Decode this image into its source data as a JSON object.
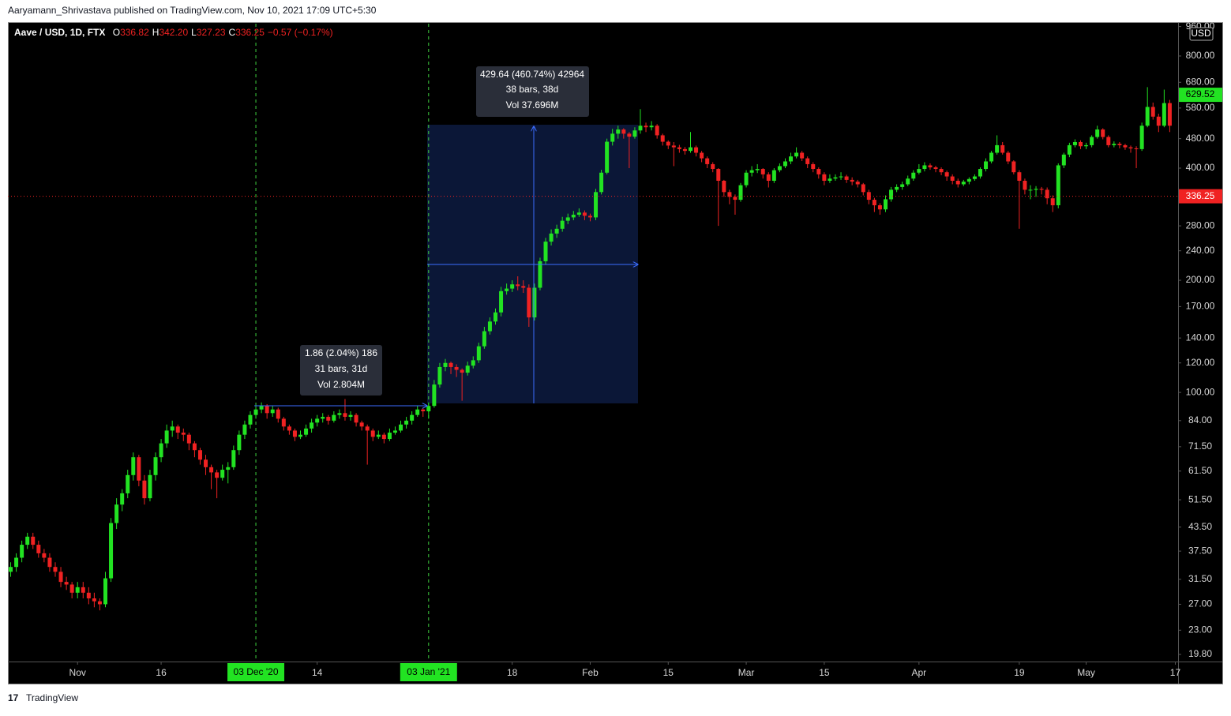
{
  "header": {
    "publisher": "Aaryamann_Shrivastava published on TradingView.com, Nov 10, 2021 17:09 UTC+5:30",
    "footer": "TradingView"
  },
  "chart_data": {
    "type": "candlestick",
    "title": "Aave / USD, 1D, FTX",
    "quote": [
      [
        "O",
        "336.82"
      ],
      [
        "H",
        "342.20"
      ],
      [
        "L",
        "327.23"
      ],
      [
        "C",
        "336.25"
      ]
    ],
    "change": "−0.57 (−0.17%)",
    "unit": "USD",
    "up_color": "#22e322",
    "down_color": "#f02222",
    "log_scale": true,
    "last_price": 336.25,
    "marked_price": 629.52,
    "ylim": [
      18.95,
      977
    ],
    "xlim": [
      -0.5,
      209.5
    ],
    "yticks": [
      {
        "value": 19.8,
        "label": "19.80"
      },
      {
        "value": 23,
        "label": "23.00"
      },
      {
        "value": 27,
        "label": "27.00"
      },
      {
        "value": 31.5,
        "label": "31.50"
      },
      {
        "value": 37.5,
        "label": "37.50"
      },
      {
        "value": 43.5,
        "label": "43.50"
      },
      {
        "value": 51.5,
        "label": "51.50"
      },
      {
        "value": 61.5,
        "label": "61.50"
      },
      {
        "value": 71.5,
        "label": "71.50"
      },
      {
        "value": 84,
        "label": "84.00"
      },
      {
        "value": 100,
        "label": "100.00"
      },
      {
        "value": 120,
        "label": "120.00"
      },
      {
        "value": 140,
        "label": "140.00"
      },
      {
        "value": 170,
        "label": "170.00"
      },
      {
        "value": 200,
        "label": "200.00"
      },
      {
        "value": 240,
        "label": "240.00"
      },
      {
        "value": 280,
        "label": "280.00"
      },
      {
        "value": 400,
        "label": "400.00"
      },
      {
        "value": 480,
        "label": "480.00"
      },
      {
        "value": 580,
        "label": "580.00"
      },
      {
        "value": 680,
        "label": "680.00"
      },
      {
        "value": 800,
        "label": "800.00"
      },
      {
        "value": 960,
        "label": "960.00"
      }
    ],
    "xticks": [
      {
        "value": 12,
        "label": "Nov"
      },
      {
        "value": 27,
        "label": "16"
      },
      {
        "value": 55,
        "label": "14"
      },
      {
        "value": 90,
        "label": "18"
      },
      {
        "value": 104,
        "label": "Feb"
      },
      {
        "value": 118,
        "label": "15"
      },
      {
        "value": 132,
        "label": "Mar"
      },
      {
        "value": 146,
        "label": "15"
      },
      {
        "value": 163,
        "label": "Apr"
      },
      {
        "value": 181,
        "label": "19"
      },
      {
        "value": 193,
        "label": "May"
      },
      {
        "value": 209,
        "label": "17"
      }
    ],
    "x_markers": [
      {
        "value": 44,
        "label": "03 Dec '20"
      },
      {
        "value": 75,
        "label": "03 Jan '21"
      }
    ],
    "measurements": [
      [
        "1.86 (2.04%) 186",
        "31 bars, 31d",
        "Vol 2.804M"
      ],
      [
        "429.64 (460.74%) 42964",
        "38 bars, 38d",
        "Vol 37.696M"
      ]
    ],
    "ohlc": [
      [
        33,
        35,
        32,
        34
      ],
      [
        34,
        37,
        33,
        36
      ],
      [
        36,
        40,
        35,
        39
      ],
      [
        39,
        42,
        38,
        41
      ],
      [
        41,
        42,
        38,
        39
      ],
      [
        39,
        40,
        36,
        37
      ],
      [
        37,
        38,
        35,
        36
      ],
      [
        36,
        37,
        33,
        34
      ],
      [
        34,
        35,
        32,
        33
      ],
      [
        33,
        34,
        30,
        31
      ],
      [
        31,
        32,
        29.5,
        30.5
      ],
      [
        30.5,
        31,
        28,
        29
      ],
      [
        29,
        31,
        28,
        30
      ],
      [
        30,
        31,
        28,
        29
      ],
      [
        29,
        30,
        27,
        28
      ],
      [
        28,
        29,
        26.5,
        27.5
      ],
      [
        27.5,
        28,
        26,
        27
      ],
      [
        27,
        33,
        26.5,
        31.7
      ],
      [
        31.7,
        46,
        31,
        44.6
      ],
      [
        44.6,
        52,
        43,
        50
      ],
      [
        50,
        55,
        48,
        53.6
      ],
      [
        53.6,
        62,
        52,
        60
      ],
      [
        60,
        69,
        58,
        67
      ],
      [
        67,
        68,
        56,
        58
      ],
      [
        58,
        60,
        50,
        52
      ],
      [
        52,
        62,
        51,
        60
      ],
      [
        60,
        69,
        58,
        67
      ],
      [
        67,
        75,
        65,
        73
      ],
      [
        73,
        82,
        71,
        79
      ],
      [
        79,
        84,
        76,
        81
      ],
      [
        81,
        82,
        75,
        78
      ],
      [
        78,
        80,
        74,
        77
      ],
      [
        77,
        78,
        70,
        73
      ],
      [
        73,
        74,
        67,
        70
      ],
      [
        70,
        71,
        64,
        66
      ],
      [
        66,
        68,
        60,
        63
      ],
      [
        63,
        64,
        55,
        61
      ],
      [
        61,
        62,
        52,
        59
      ],
      [
        59,
        64,
        58,
        62
      ],
      [
        62,
        65,
        57,
        63
      ],
      [
        63,
        72,
        62,
        70
      ],
      [
        70,
        79,
        68,
        77
      ],
      [
        77,
        84,
        75,
        82
      ],
      [
        82,
        89,
        80,
        87
      ],
      [
        87,
        92,
        85,
        90
      ],
      [
        90,
        94,
        88,
        92
      ],
      [
        92,
        93,
        85,
        88
      ],
      [
        88,
        92,
        86,
        90
      ],
      [
        90,
        91,
        83,
        85
      ],
      [
        85,
        86,
        79,
        81
      ],
      [
        81,
        82,
        77,
        79
      ],
      [
        79,
        80,
        74,
        76
      ],
      [
        76,
        79,
        75,
        77
      ],
      [
        77,
        82,
        76,
        80
      ],
      [
        80,
        85,
        78,
        83
      ],
      [
        83,
        87,
        81,
        85
      ],
      [
        85,
        88,
        83,
        86
      ],
      [
        86,
        87,
        82,
        84
      ],
      [
        84,
        89,
        83,
        87
      ],
      [
        87,
        90,
        85,
        88
      ],
      [
        88,
        96,
        84,
        86
      ],
      [
        86,
        89,
        84,
        87
      ],
      [
        87,
        88,
        81,
        83
      ],
      [
        83,
        84,
        79,
        81
      ],
      [
        81,
        82,
        64,
        79
      ],
      [
        79,
        80,
        74,
        76
      ],
      [
        76,
        79,
        75,
        77
      ],
      [
        77,
        78,
        73,
        75
      ],
      [
        75,
        80,
        74,
        78
      ],
      [
        78,
        81,
        77,
        79
      ],
      [
        79,
        84,
        78,
        82
      ],
      [
        82,
        86,
        80,
        84
      ],
      [
        84,
        89,
        82,
        87
      ],
      [
        87,
        92,
        86,
        90
      ],
      [
        90,
        91,
        86,
        89
      ],
      [
        89,
        94,
        85,
        92
      ],
      [
        92,
        108,
        91,
        105
      ],
      [
        105,
        120,
        103,
        117
      ],
      [
        117,
        123,
        114,
        120
      ],
      [
        120,
        121,
        112,
        117
      ],
      [
        117,
        119,
        110,
        115
      ],
      [
        115,
        116,
        95,
        113
      ],
      [
        113,
        121,
        111,
        118
      ],
      [
        118,
        125,
        116,
        122
      ],
      [
        122,
        136,
        120,
        133
      ],
      [
        133,
        150,
        131,
        146
      ],
      [
        146,
        159,
        143,
        155
      ],
      [
        155,
        168,
        152,
        164
      ],
      [
        164,
        192,
        160,
        187
      ],
      [
        187,
        196,
        183,
        190
      ],
      [
        190,
        200,
        186,
        195
      ],
      [
        195,
        205,
        188,
        193
      ],
      [
        193,
        200,
        185,
        191
      ],
      [
        191,
        195,
        150,
        159
      ],
      [
        159,
        196,
        156,
        191
      ],
      [
        191,
        230,
        188,
        225
      ],
      [
        225,
        260,
        220,
        254
      ],
      [
        254,
        274,
        248,
        267
      ],
      [
        267,
        282,
        260,
        275
      ],
      [
        275,
        296,
        270,
        289
      ],
      [
        289,
        302,
        283,
        295
      ],
      [
        295,
        307,
        290,
        300
      ],
      [
        300,
        312,
        296,
        304
      ],
      [
        304,
        308,
        290,
        298
      ],
      [
        298,
        302,
        288,
        295
      ],
      [
        295,
        352,
        290,
        345
      ],
      [
        345,
        396,
        340,
        389
      ],
      [
        389,
        480,
        385,
        471
      ],
      [
        471,
        510,
        460,
        495
      ],
      [
        495,
        520,
        480,
        508
      ],
      [
        508,
        512,
        480,
        495
      ],
      [
        495,
        500,
        400,
        486
      ],
      [
        486,
        515,
        480,
        505
      ],
      [
        505,
        576,
        495,
        520
      ],
      [
        520,
        530,
        500,
        515
      ],
      [
        515,
        535,
        505,
        520
      ],
      [
        520,
        525,
        480,
        490
      ],
      [
        490,
        495,
        460,
        471
      ],
      [
        471,
        475,
        450,
        460
      ],
      [
        460,
        470,
        405,
        455
      ],
      [
        455,
        462,
        440,
        450
      ],
      [
        450,
        456,
        435,
        445
      ],
      [
        445,
        500,
        440,
        455
      ],
      [
        455,
        460,
        430,
        440
      ],
      [
        440,
        445,
        415,
        425
      ],
      [
        425,
        430,
        400,
        410
      ],
      [
        410,
        415,
        390,
        398
      ],
      [
        398,
        400,
        280,
        370
      ],
      [
        370,
        372,
        335,
        345
      ],
      [
        345,
        350,
        320,
        335
      ],
      [
        335,
        340,
        300,
        329
      ],
      [
        329,
        365,
        325,
        360
      ],
      [
        360,
        395,
        355,
        389
      ],
      [
        389,
        405,
        380,
        395
      ],
      [
        395,
        410,
        388,
        398
      ],
      [
        398,
        400,
        375,
        385
      ],
      [
        385,
        390,
        355,
        370
      ],
      [
        370,
        400,
        365,
        395
      ],
      [
        395,
        412,
        390,
        405
      ],
      [
        405,
        425,
        400,
        417
      ],
      [
        417,
        440,
        410,
        430
      ],
      [
        430,
        455,
        425,
        440
      ],
      [
        440,
        445,
        418,
        425
      ],
      [
        425,
        430,
        400,
        410
      ],
      [
        410,
        415,
        390,
        398
      ],
      [
        398,
        402,
        375,
        385
      ],
      [
        385,
        390,
        360,
        370
      ],
      [
        370,
        385,
        365,
        375
      ],
      [
        375,
        385,
        370,
        378
      ],
      [
        378,
        390,
        372,
        380
      ],
      [
        380,
        384,
        365,
        372
      ],
      [
        372,
        378,
        360,
        368
      ],
      [
        368,
        372,
        355,
        362
      ],
      [
        362,
        365,
        338,
        345
      ],
      [
        345,
        350,
        320,
        329
      ],
      [
        329,
        333,
        305,
        318
      ],
      [
        318,
        322,
        300,
        310
      ],
      [
        310,
        338,
        305,
        330
      ],
      [
        330,
        356,
        325,
        350
      ],
      [
        350,
        362,
        345,
        356
      ],
      [
        356,
        368,
        350,
        362
      ],
      [
        362,
        382,
        358,
        375
      ],
      [
        375,
        395,
        370,
        389
      ],
      [
        389,
        410,
        385,
        398
      ],
      [
        398,
        415,
        392,
        407
      ],
      [
        407,
        412,
        396,
        402
      ],
      [
        402,
        406,
        390,
        398
      ],
      [
        398,
        402,
        383,
        390
      ],
      [
        390,
        394,
        370,
        380
      ],
      [
        380,
        385,
        362,
        370
      ],
      [
        370,
        375,
        355,
        362
      ],
      [
        362,
        372,
        358,
        368
      ],
      [
        368,
        378,
        362,
        374
      ],
      [
        374,
        385,
        370,
        380
      ],
      [
        380,
        402,
        375,
        398
      ],
      [
        398,
        425,
        392,
        417
      ],
      [
        417,
        445,
        412,
        440
      ],
      [
        440,
        490,
        435,
        461
      ],
      [
        461,
        470,
        435,
        440
      ],
      [
        440,
        445,
        410,
        417
      ],
      [
        417,
        420,
        385,
        390
      ],
      [
        390,
        395,
        275,
        370
      ],
      [
        370,
        375,
        340,
        350
      ],
      [
        350,
        360,
        330,
        350
      ],
      [
        350,
        358,
        335,
        352
      ],
      [
        352,
        356,
        340,
        350
      ],
      [
        350,
        355,
        320,
        332
      ],
      [
        332,
        338,
        305,
        318
      ],
      [
        318,
        412,
        312,
        407
      ],
      [
        407,
        440,
        400,
        435
      ],
      [
        435,
        468,
        428,
        461
      ],
      [
        461,
        478,
        455,
        470
      ],
      [
        470,
        475,
        450,
        458
      ],
      [
        458,
        468,
        450,
        461
      ],
      [
        461,
        490,
        455,
        485
      ],
      [
        485,
        520,
        480,
        508
      ],
      [
        508,
        512,
        478,
        485
      ],
      [
        485,
        490,
        455,
        461
      ],
      [
        461,
        472,
        455,
        465
      ],
      [
        465,
        470,
        452,
        461
      ],
      [
        461,
        465,
        448,
        455
      ],
      [
        455,
        460,
        440,
        452
      ],
      [
        452,
        458,
        400,
        450
      ],
      [
        450,
        530,
        445,
        520
      ],
      [
        520,
        660,
        515,
        584
      ],
      [
        584,
        600,
        540,
        550
      ],
      [
        550,
        560,
        500,
        520
      ],
      [
        520,
        650,
        515,
        598
      ],
      [
        598,
        610,
        500,
        520
      ]
    ]
  }
}
